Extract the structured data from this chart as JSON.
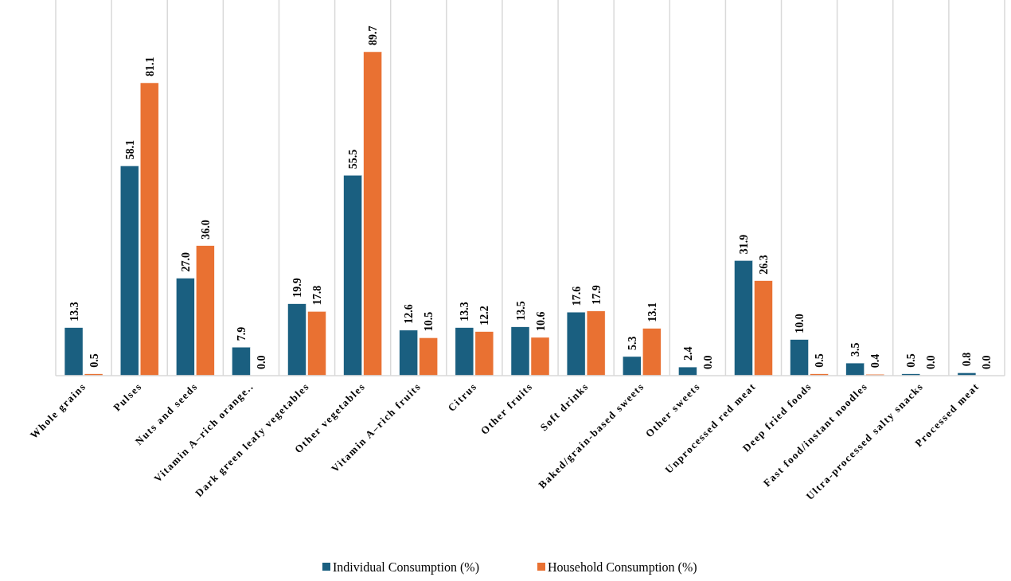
{
  "chart_data": {
    "type": "bar",
    "categories": [
      "Whole grains",
      "Pulses",
      "Nuts and seeds",
      "Vitamin A–rich orange..",
      "Dark green leafy vegetables",
      "Other vegetables",
      "Vitamin A–rich fruits",
      "Citrus",
      "Other fruits",
      "Soft drinks",
      "Baked/grain-based sweets",
      "Other sweets",
      "Unprocessed red meat",
      "Deep fried foods",
      "Fast food/instant noodles",
      "Ultra-processed salty snacks",
      "Processed meat"
    ],
    "series": [
      {
        "name": "Individual Consumption (%)",
        "color": "#1a5f80",
        "values": [
          13.3,
          58.1,
          27.0,
          7.9,
          19.9,
          55.5,
          12.6,
          13.3,
          13.5,
          17.6,
          5.3,
          2.4,
          31.9,
          10.0,
          3.5,
          0.5,
          0.8
        ],
        "value_labels": [
          "13.3",
          "58.1",
          "27.0",
          "7.9",
          "19.9",
          "55.5",
          "12.6",
          "13.3",
          "13.5",
          "17.6",
          "5.3",
          "2.4",
          "31.9",
          "10.0",
          "3.5",
          "0.5",
          "0.8"
        ]
      },
      {
        "name": "Household Consumption (%)",
        "color": "#e97132",
        "values": [
          0.5,
          81.1,
          36.0,
          0.0,
          17.8,
          89.7,
          10.5,
          12.2,
          10.6,
          17.9,
          13.1,
          0.0,
          26.3,
          0.5,
          0.4,
          0.0,
          0.0
        ],
        "value_labels": [
          "0.5",
          "81.1",
          "36.0",
          "0.0",
          "17.8",
          "89.7",
          "10.5",
          "12.2",
          "10.6",
          "17.9",
          "13.1",
          "0.0",
          "26.3",
          "0.5",
          "0.4",
          "0.0",
          "0.0"
        ]
      }
    ],
    "grid": "x",
    "legend": "bottom"
  }
}
